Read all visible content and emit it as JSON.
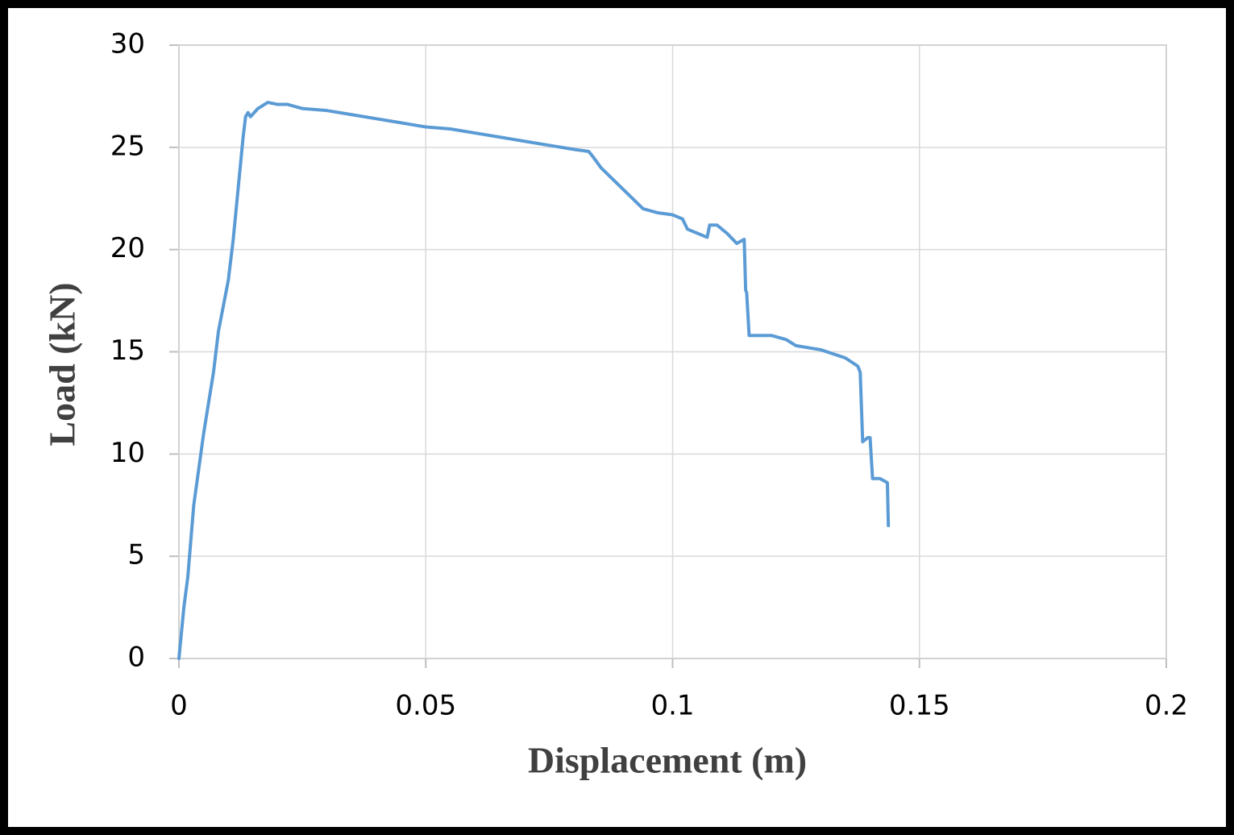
{
  "chart_data": {
    "type": "line",
    "xlabel": "Displacement (m)",
    "ylabel": "Load (kN)",
    "x": [
      0,
      0.001,
      0.0018,
      0.003,
      0.005,
      0.007,
      0.008,
      0.01,
      0.011,
      0.012,
      0.013,
      0.0135,
      0.014,
      0.0145,
      0.016,
      0.018,
      0.02,
      0.022,
      0.025,
      0.03,
      0.035,
      0.04,
      0.045,
      0.05,
      0.055,
      0.06,
      0.065,
      0.07,
      0.075,
      0.08,
      0.083,
      0.084,
      0.0855,
      0.094,
      0.097,
      0.1,
      0.102,
      0.103,
      0.105,
      0.107,
      0.1075,
      0.109,
      0.111,
      0.113,
      0.1145,
      0.1148,
      0.115,
      0.1155,
      0.12,
      0.123,
      0.125,
      0.13,
      0.135,
      0.1375,
      0.138,
      0.1385,
      0.1395,
      0.14,
      0.1405,
      0.142,
      0.1435,
      0.1437
    ],
    "values": [
      0,
      2.5,
      4,
      7.5,
      11,
      14,
      16,
      18.5,
      20.5,
      23,
      25.5,
      26.5,
      26.7,
      26.5,
      26.9,
      27.2,
      27.1,
      27.1,
      26.9,
      26.8,
      26.6,
      26.4,
      26.2,
      26.0,
      25.9,
      25.7,
      25.5,
      25.3,
      25.1,
      24.9,
      24.8,
      24.5,
      24.0,
      22.0,
      21.8,
      21.7,
      21.5,
      21.0,
      20.8,
      20.6,
      21.2,
      21.2,
      20.8,
      20.3,
      20.5,
      18.0,
      17.9,
      15.8,
      15.8,
      15.6,
      15.3,
      15.1,
      14.7,
      14.3,
      14.0,
      10.6,
      10.8,
      10.8,
      8.8,
      8.8,
      8.6,
      6.5
    ],
    "color": "#5b9bd5",
    "xlim": [
      0,
      0.2
    ],
    "ylim": [
      0,
      30
    ],
    "xticks": [
      0,
      0.05,
      0.1,
      0.15,
      0.2
    ],
    "yticks": [
      0,
      5,
      10,
      15,
      20,
      25,
      30
    ],
    "grid": true
  }
}
